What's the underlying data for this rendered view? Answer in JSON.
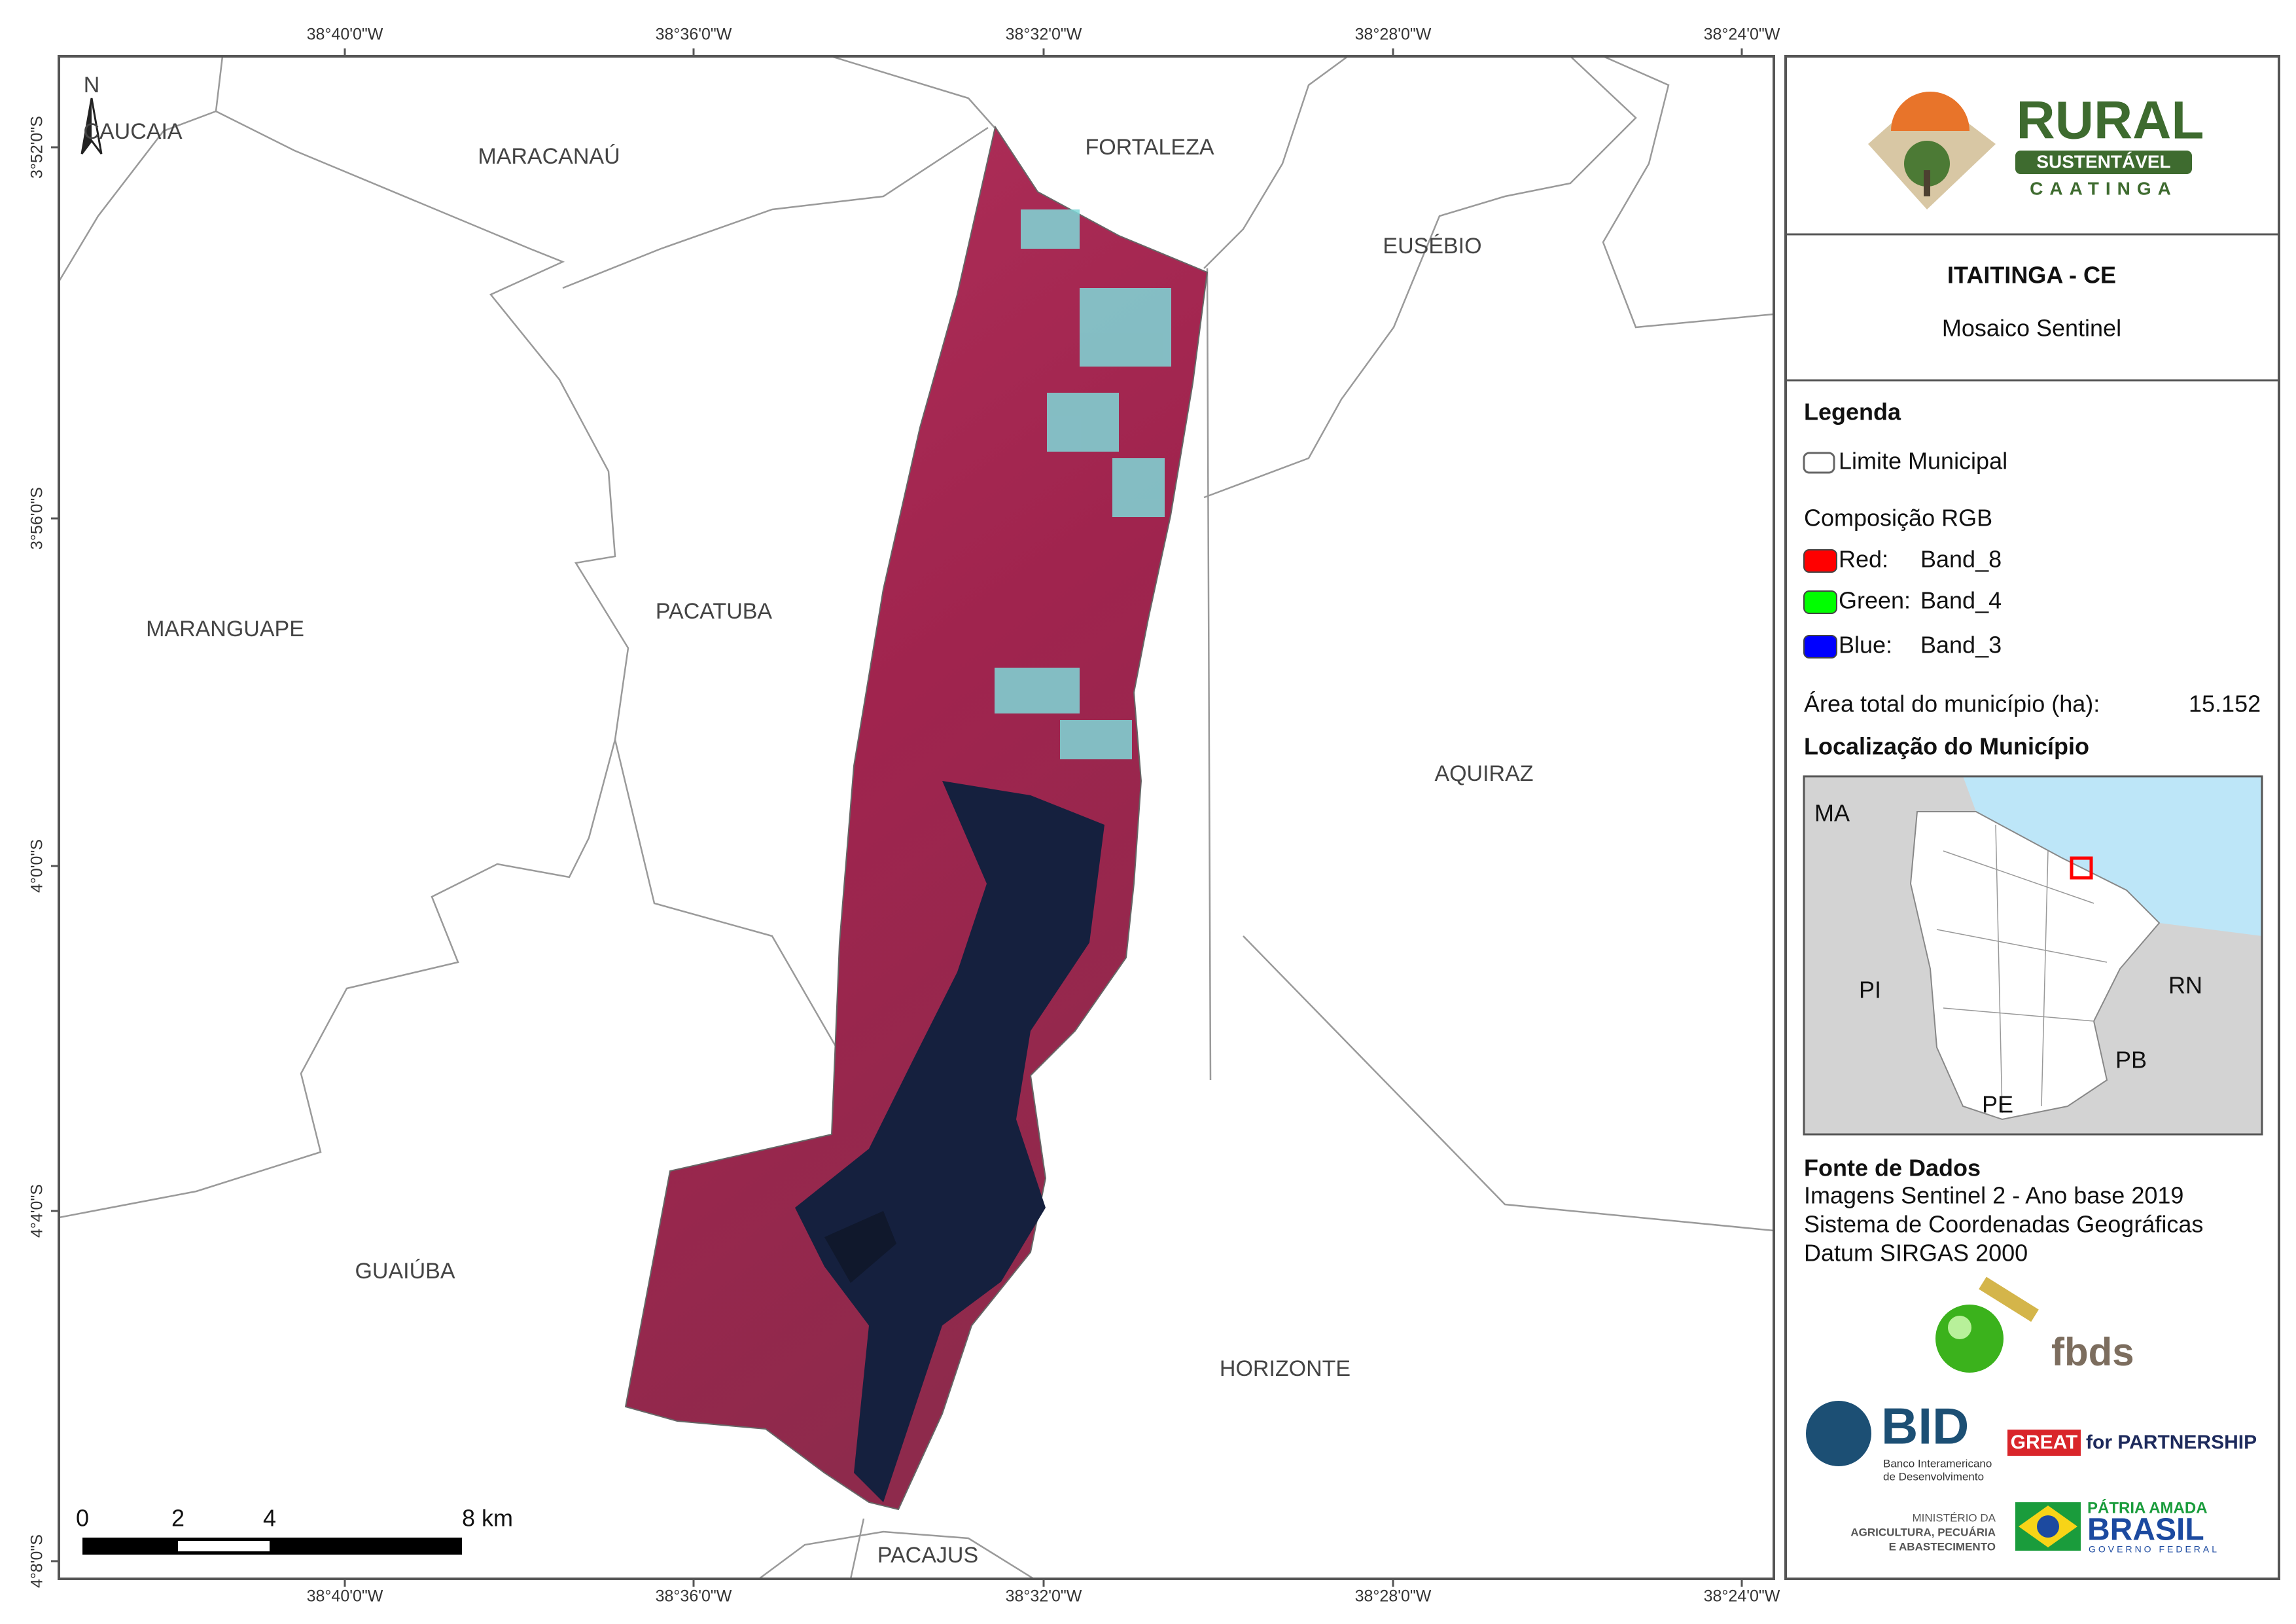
{
  "map": {
    "x_labels": [
      "38°40'0\"W",
      "38°36'0\"W",
      "38°32'0\"W",
      "38°28'0\"W",
      "38°24'0\"W"
    ],
    "y_labels": [
      "3°52'0\"S",
      "3°56'0\"S",
      "4°0'0\"S",
      "4°4'0\"S",
      "4°8'0\"S"
    ],
    "north": "N",
    "places": [
      "CAUCAIA",
      "MARACANAÚ",
      "FORTALEZA",
      "EUSÉBIO",
      "MARANGUAPE",
      "PACATUBA",
      "AQUIRAZ",
      "GUAIÚBA",
      "HORIZONTE",
      "PACAJUS"
    ],
    "scale_bar": [
      "0",
      "2",
      "4",
      "8 km"
    ]
  },
  "panel": {
    "logo": {
      "title": "RURAL",
      "ribbon": "SUSTENTÁVEL",
      "sub": "CAATINGA"
    },
    "title": "ITAITINGA - CE",
    "subtitle": "Mosaico Sentinel",
    "legend": {
      "heading": "Legenda",
      "boundary": "Limite Municipal",
      "composition": "Composição RGB",
      "bands": [
        {
          "label": "Red:",
          "band": "Band_8",
          "color": "#ff0000"
        },
        {
          "label": "Green:",
          "band": "Band_4",
          "color": "#00ff00"
        },
        {
          "label": "Blue:",
          "band": "Band_3",
          "color": "#0000ff"
        }
      ],
      "area_label": "Área total do município (ha):",
      "area_value": "15.152"
    },
    "location": {
      "heading": "Localização do Município",
      "states": [
        "MA",
        "PI",
        "RN",
        "PB",
        "PE"
      ]
    },
    "source": {
      "heading": "Fonte de Dados",
      "lines": [
        "Imagens Sentinel 2 - Ano base 2019",
        "Sistema de Coordenadas Geográficas",
        "Datum SIRGAS 2000"
      ]
    },
    "partners": {
      "fbds": "fbds",
      "bid": "BID",
      "bid_name": [
        "Banco Interamericano",
        "de Desenvolvimento"
      ],
      "great": "GREAT",
      "great_rest": "for PARTNERSHIP",
      "ministry": [
        "MINISTÉRIO DA",
        "AGRICULTURA, PECUÁRIA",
        "E ABASTECIMENTO"
      ],
      "brasil_top": "PÁTRIA AMADA",
      "brasil": "BRASIL",
      "brasil_sub": "GOVERNO FEDERAL"
    }
  }
}
